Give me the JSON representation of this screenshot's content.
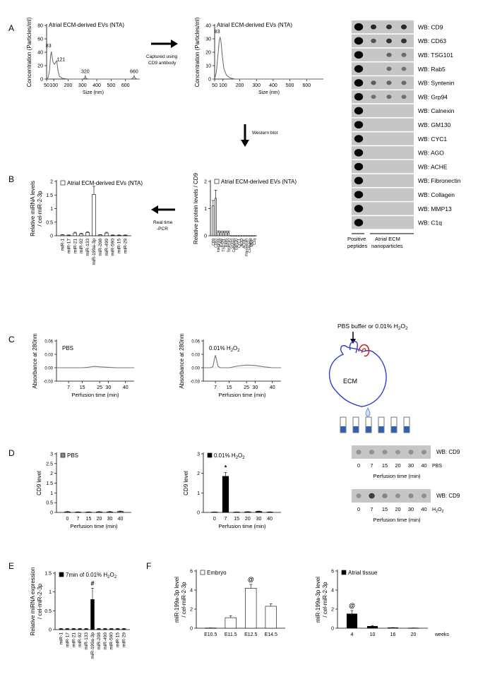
{
  "panels": {
    "A": "A",
    "B": "B",
    "C": "C",
    "D": "D",
    "E": "E",
    "F": "F"
  },
  "annotations": {
    "captured_line1": "Captured using",
    "captured_line2": "CD9 antibody",
    "western_blot": "Western blot",
    "realtime_line1": "Real time",
    "realtime_line2": "-PCR",
    "pbs_or_h2o2": "PBS buffer or 0.01%  H2O2",
    "ecm_label": "ECM"
  },
  "blot_A": {
    "labels": [
      "WB: CD9",
      "WB: CD63",
      "WB: TSG101",
      "WB: Rab5",
      "WB: Syntenin",
      "WB: Grp94",
      "WB: Calnexin",
      "WB: GM130",
      "WB: CYC1",
      "WB: AGO",
      "WB: ACHE",
      "WB: Fibronectin",
      "WB: Collagen",
      "WB: MMP13",
      "WB: C1q"
    ],
    "intensity": [
      [
        1,
        0.85,
        0.8,
        0.85
      ],
      [
        1,
        0.6,
        0.8,
        0.8
      ],
      [
        1,
        0,
        0.5,
        0.45
      ],
      [
        1,
        0,
        0.45,
        0.4
      ],
      [
        1,
        0.55,
        0.5,
        0.45
      ],
      [
        1,
        0.4,
        0.45,
        0.4
      ],
      [
        1,
        0,
        0,
        0
      ],
      [
        1,
        0,
        0,
        0
      ],
      [
        1,
        0,
        0,
        0
      ],
      [
        1,
        0,
        0,
        0
      ],
      [
        1,
        0,
        0,
        0
      ],
      [
        1,
        0,
        0,
        0
      ],
      [
        1,
        0,
        0,
        0
      ],
      [
        1,
        0,
        0,
        0
      ],
      [
        1,
        0,
        0,
        0
      ]
    ],
    "group1": "Positive",
    "group1b": "peptides",
    "group2": "Atrial ECM",
    "group2b": "nanoparticles"
  },
  "blot_D": {
    "label": "WB: CD9",
    "times": [
      "0",
      "7",
      "15",
      "20",
      "30",
      "40"
    ],
    "pbs_label": "PBS",
    "h2o2_label": "H2O2",
    "xlabel": "Perfusion time (min)",
    "pbs_intensity": [
      0.3,
      0.3,
      0.3,
      0.25,
      0.3,
      0.3
    ],
    "h2o2_intensity": [
      0.3,
      0.85,
      0.4,
      0.3,
      0.35,
      0.3
    ]
  },
  "chart_data": [
    {
      "id": "A1",
      "type": "line",
      "title": "Atrial ECM-derived EVs (NTA)",
      "xlabel": "Size (nm)",
      "ylabel": "Concentration (Particles/ml)",
      "xlim": [
        50,
        700
      ],
      "ylim": [
        0,
        80
      ],
      "xticks": [
        50,
        100,
        200,
        300,
        400,
        500,
        600
      ],
      "yticks": [
        0,
        20,
        40,
        60,
        80
      ],
      "x": [
        50,
        60,
        70,
        78,
        83,
        88,
        95,
        105,
        115,
        121,
        130,
        140,
        160,
        200,
        260,
        300,
        315,
        320,
        325,
        340,
        400,
        500,
        600,
        640,
        655,
        660,
        665,
        680,
        700
      ],
      "y": [
        0,
        2,
        12,
        35,
        41,
        34,
        25,
        22,
        26,
        27,
        12,
        4,
        1,
        0,
        0,
        0,
        1,
        5,
        1,
        0,
        0,
        0,
        0,
        0,
        2,
        5,
        2,
        0,
        0
      ],
      "peaks": [
        {
          "x": 83,
          "y": 41,
          "label": "83"
        },
        {
          "x": 121,
          "y": 27,
          "label": "121"
        },
        {
          "x": 320,
          "y": 5,
          "label": "320"
        },
        {
          "x": 660,
          "y": 5,
          "label": "660"
        }
      ]
    },
    {
      "id": "A2",
      "type": "line",
      "title": "Atrial ECM-derived EVs (NTA)",
      "xlabel": "Size (nm)",
      "ylabel": "Concentration (Particles/ml)",
      "xlim": [
        50,
        700
      ],
      "ylim": [
        0,
        40
      ],
      "xticks": [
        50,
        100,
        200,
        300,
        400,
        500,
        600
      ],
      "yticks": [
        0,
        10,
        20,
        30,
        40
      ],
      "x": [
        50,
        60,
        70,
        78,
        83,
        88,
        95,
        105,
        120,
        140,
        170,
        200,
        300,
        700
      ],
      "y": [
        0,
        5,
        18,
        29,
        31,
        28,
        18,
        8,
        3,
        1,
        0,
        0,
        0,
        0
      ],
      "peaks": [
        {
          "x": 83,
          "y": 31,
          "label": "83"
        }
      ]
    },
    {
      "id": "B1",
      "type": "bar",
      "legend": "Atrial ECM-derived EVs (NTA)",
      "ylabel": "Relative miRNA levels\n/ cel-miR-2-3p",
      "ylim": [
        0,
        2
      ],
      "yticks": [
        0,
        0.5,
        1,
        1.5,
        2
      ],
      "categories": [
        "miR-1",
        "miR-17",
        "miR-21",
        "miR-92",
        "miR-133",
        "miR-199a-3p",
        "miR-208",
        "miR-499",
        "miR-590",
        "miR-15",
        "miR-29"
      ],
      "values": [
        0.03,
        0.02,
        0.1,
        0.07,
        0.12,
        1.52,
        0.03,
        0.1,
        0.02,
        0.02,
        0.02
      ],
      "errors": [
        0.01,
        0.01,
        0.03,
        0.02,
        0.03,
        0.3,
        0.01,
        0.03,
        0.01,
        0.01,
        0.01
      ]
    },
    {
      "id": "B2",
      "type": "bar",
      "legend": "Atrial ECM-derived EVs (NTA)",
      "ylabel": "Relative protein levels / CD9",
      "ylim": [
        0,
        2
      ],
      "yticks": [
        0,
        1,
        2
      ],
      "categories": [
        "CD9",
        "CD63",
        "Integrins",
        "ICAM",
        "TSG101",
        "Rab5",
        "Syntenin",
        "Grp94",
        "Calnexin",
        "GM130",
        "CYC1",
        "AGO",
        "ACHE",
        "Fibronectin",
        "Collagen",
        "MMP",
        "C1q"
      ],
      "values": [
        1.1,
        1.38,
        0.13,
        0.12,
        0.12,
        0.12,
        0.12,
        0,
        0,
        0,
        0,
        0,
        0,
        0,
        0,
        0,
        0
      ],
      "errors": [
        0.2,
        0.3,
        0.05,
        0.05,
        0.05,
        0.05,
        0.05,
        0,
        0,
        0,
        0,
        0,
        0,
        0,
        0,
        0,
        0
      ]
    },
    {
      "id": "C1",
      "type": "line",
      "label": "PBS",
      "xlabel": "Perfusion time (min)",
      "ylabel": "Absorbance at 280nm",
      "xlim": [
        0,
        45
      ],
      "ylim": [
        -0.03,
        0.06
      ],
      "xticks": [
        7,
        15,
        25,
        30,
        40
      ],
      "yticks": [
        -0.03,
        0,
        0.03,
        0.06
      ],
      "x": [
        0,
        10,
        15,
        18,
        22,
        25,
        30,
        35,
        45
      ],
      "y": [
        0,
        0,
        0,
        0.001,
        0.003,
        0.002,
        0.001,
        0,
        0
      ]
    },
    {
      "id": "C2",
      "type": "line",
      "label": "0.01% H2O2",
      "xlabel": "Perfusion time (min)",
      "ylabel": "Absorbance at 280nm",
      "xlim": [
        0,
        45
      ],
      "ylim": [
        -0.03,
        0.06
      ],
      "xticks": [
        7,
        15,
        25,
        30,
        40
      ],
      "yticks": [
        -0.03,
        0,
        0.03,
        0.06
      ],
      "x": [
        0,
        4,
        5.5,
        6.5,
        7,
        7.5,
        8.5,
        10,
        15,
        20,
        25,
        30,
        35,
        40,
        45
      ],
      "y": [
        0,
        0,
        0.002,
        0.02,
        0.028,
        0.02,
        0.003,
        0,
        0,
        0.004,
        0.006,
        0.005,
        0.002,
        0,
        0
      ]
    },
    {
      "id": "D1",
      "type": "bar",
      "legend": "PBS",
      "ylabel": "CD9  level",
      "xlabel": "Perfusion time (min)",
      "ylim": [
        0,
        3
      ],
      "yticks": [
        0,
        0.5,
        1,
        1.5,
        2,
        2.5,
        3
      ],
      "categories": [
        "0",
        "7",
        "15",
        "20",
        "30",
        "40"
      ],
      "values": [
        0.03,
        0.02,
        0.02,
        0.03,
        0.03,
        0.05
      ],
      "errors": [
        0.02,
        0.01,
        0.01,
        0.01,
        0.02,
        0.02
      ]
    },
    {
      "id": "D2",
      "type": "bar",
      "legend": "0.01% H2O2",
      "ylabel": "CD9  level",
      "xlabel": "Perfusion time (min)",
      "ylim": [
        0,
        3
      ],
      "yticks": [
        0,
        1,
        2,
        3
      ],
      "categories": [
        "0",
        "7",
        "15",
        "20",
        "30",
        "40"
      ],
      "values": [
        0.02,
        1.85,
        0.02,
        0.03,
        0.05,
        0.02
      ],
      "errors": [
        0.01,
        0.2,
        0.01,
        0.01,
        0.02,
        0.01
      ],
      "marks": [
        {
          "index": 1,
          "symbol": "*"
        }
      ]
    },
    {
      "id": "E",
      "type": "bar",
      "legend": "7min of 0.01% H2O2",
      "ylabel": "Relative miRNA expression\n/ cel-miR-2-3p",
      "ylim": [
        0,
        1.5
      ],
      "yticks": [
        0,
        0.5,
        1,
        1.5
      ],
      "categories": [
        "miR-1",
        "miR-17",
        "miR-21",
        "miR-92",
        "miR-133",
        "miR-199a-3p",
        "miR-208",
        "miR-499",
        "miR-590",
        "miR-15",
        "miR-29"
      ],
      "values": [
        0.02,
        0.02,
        0.02,
        0.02,
        0.02,
        0.8,
        0.02,
        0.02,
        0.02,
        0.02,
        0.02
      ],
      "errors": [
        0.01,
        0.01,
        0.01,
        0.01,
        0.01,
        0.3,
        0.01,
        0.01,
        0.01,
        0.01,
        0.01
      ],
      "marks": [
        {
          "index": 5,
          "symbol": "#"
        }
      ]
    },
    {
      "id": "F1",
      "type": "bar",
      "legend": "Embryo",
      "ylabel": "miR-199a-3p level\n/ cel-miR-2-3p",
      "ylim": [
        0,
        6
      ],
      "yticks": [
        0,
        2,
        4,
        6
      ],
      "categories": [
        "E10.5",
        "E11.5",
        "E12.5",
        "E14.5"
      ],
      "values": [
        0.02,
        1.1,
        4.2,
        2.3
      ],
      "errors": [
        0.01,
        0.2,
        0.4,
        0.25
      ],
      "marks": [
        {
          "index": 2,
          "symbol": "@"
        }
      ]
    },
    {
      "id": "F2",
      "type": "bar",
      "legend": "Atrial tissue",
      "ylabel": "miR-199a-3p level\n/ cel-miR-2-3p",
      "xunit": "weeks",
      "ylim": [
        0,
        6
      ],
      "yticks": [
        0,
        2,
        4,
        6
      ],
      "categories": [
        "4",
        "10",
        "16",
        "20"
      ],
      "values": [
        1.5,
        0.2,
        0.05,
        0.02
      ],
      "errors": [
        0.35,
        0.08,
        0.02,
        0.01
      ],
      "marks": [
        {
          "index": 0,
          "symbol": "@"
        }
      ]
    }
  ]
}
